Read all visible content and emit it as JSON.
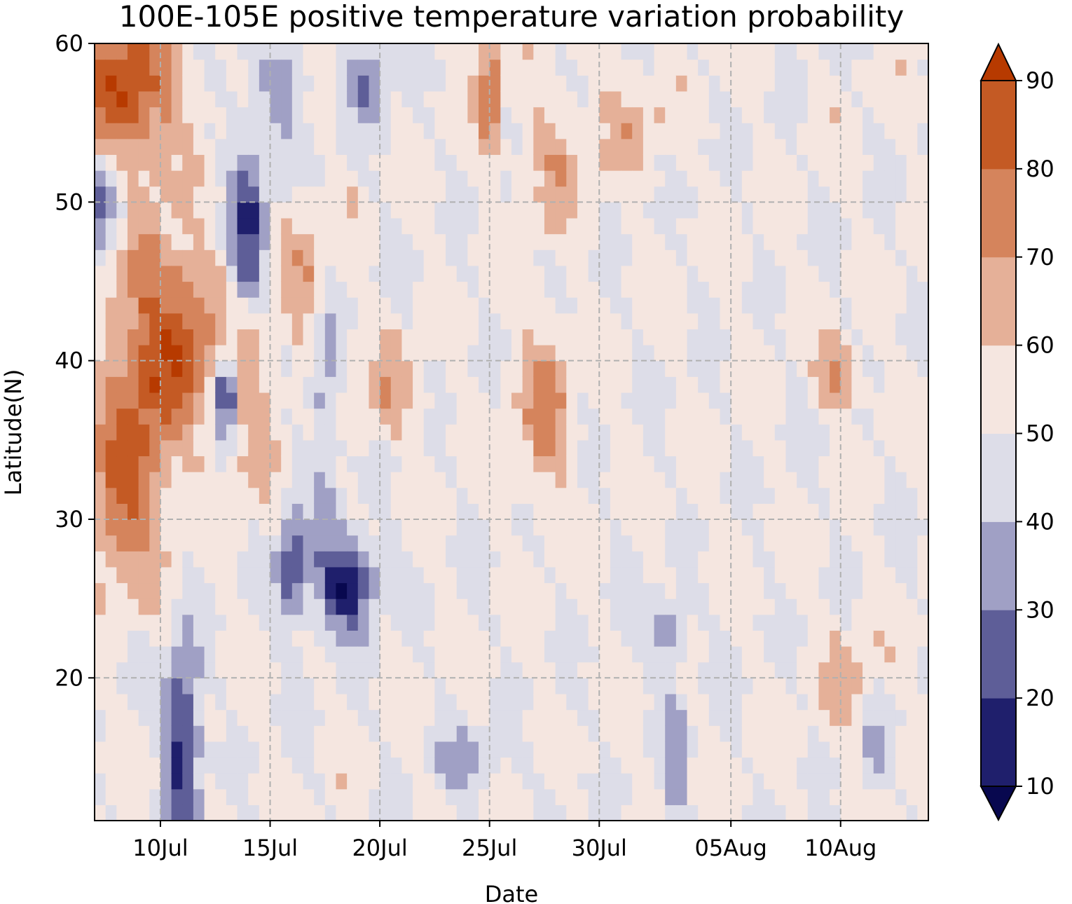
{
  "chart_data": {
    "type": "heatmap",
    "title": "100E-105E positive temperature variation probability",
    "xlabel": "Date",
    "ylabel": "Latitude(N)",
    "x_ticks": [
      "10Jul",
      "15Jul",
      "20Jul",
      "25Jul",
      "30Jul",
      "05Aug",
      "10Aug"
    ],
    "x_range": [
      "07Jul",
      "14Aug"
    ],
    "y_range": [
      11,
      60
    ],
    "y_ticks": [
      20,
      30,
      40,
      50,
      60
    ],
    "grid": true,
    "colorbar": {
      "levels": [
        10,
        20,
        30,
        40,
        50,
        60,
        70,
        80,
        90
      ],
      "tick_labels": [
        "10",
        "20",
        "30",
        "40",
        "50",
        "60",
        "70",
        "80",
        "90"
      ],
      "extend": "both",
      "colors": [
        "#08084f",
        "#1f1f6c",
        "#5e5e98",
        "#a0a0c5",
        "#dddde8",
        "#f5e6e0",
        "#e5b098",
        "#d5845c",
        "#c45a24",
        "#b73a00"
      ]
    },
    "approximate_features": [
      {
        "region": "07Jul-10Jul, 52-60N",
        "level_range": "80-90"
      },
      {
        "region": "07Jul-11Jul, 25-47N",
        "level_range": "70-90"
      },
      {
        "region": "10Jul-12Jul, 11-21N",
        "level_range": "10-30"
      },
      {
        "region": "12Jul-15Jul, 38-55N",
        "level_range": "20-40"
      },
      {
        "region": "17Jul-19Jul, 23-29N",
        "level_range": "10-30"
      },
      {
        "region": "27Jul-29Jul, 35-45N",
        "level_range": "60-80"
      },
      {
        "region": "07Aug-09Aug, 35-42N",
        "level_range": "60-80"
      },
      {
        "region": "02Aug-04Aug, 19-25N",
        "level_range": "20-40"
      }
    ]
  }
}
